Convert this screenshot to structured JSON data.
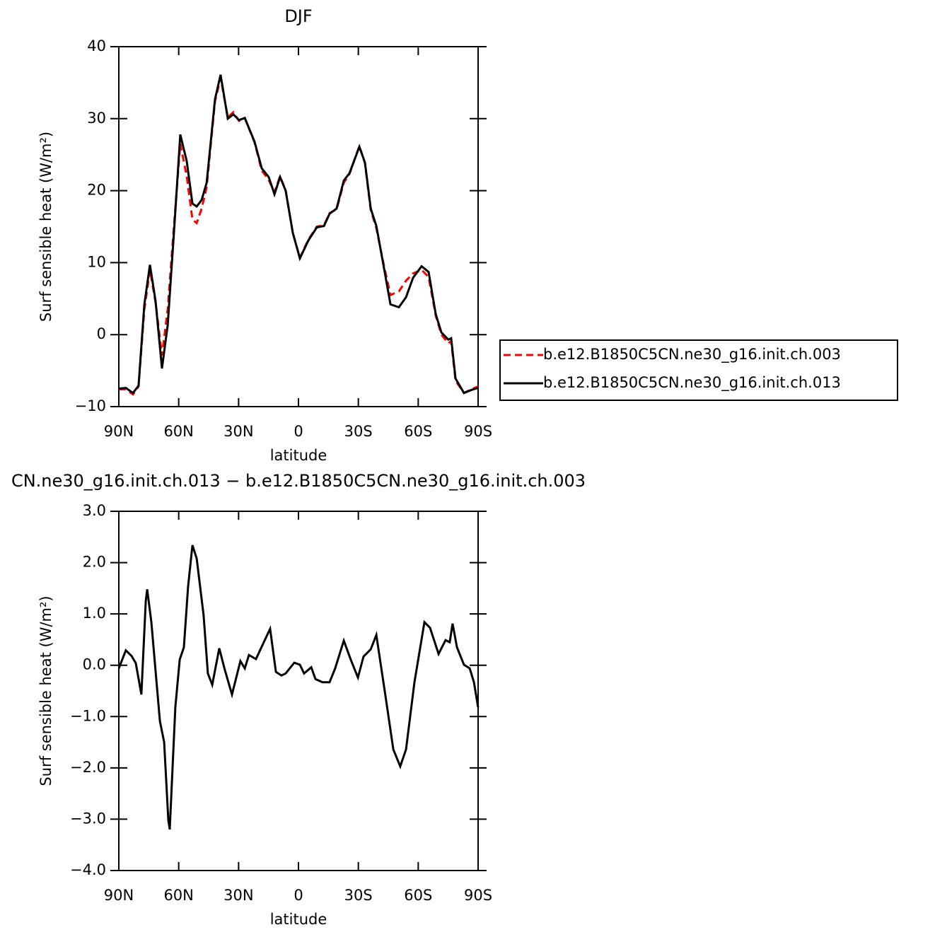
{
  "chart_data": [
    {
      "type": "line",
      "title": "DJF",
      "xlabel": "latitude",
      "ylabel": "Surf sensible heat (W/m²)",
      "x": [
        90,
        86.5,
        82.9,
        80.1,
        77.2,
        74.4,
        71.6,
        68.4,
        65.5,
        62.4,
        59.2,
        56,
        53.1,
        51,
        48.5,
        46,
        41.8,
        39,
        35.4,
        32.6,
        29.8,
        26.9,
        22,
        18.4,
        14.9,
        12,
        9.2,
        6.4,
        2.8,
        -0.7,
        -5,
        -9.2,
        -12.8,
        -15.6,
        -19.1,
        -22.7,
        -25.5,
        -30.5,
        -33.3,
        -36.2,
        -39,
        -43.2,
        -46.1,
        -50.3,
        -53.9,
        -57.4,
        -61.7,
        -65.2,
        -68.8,
        -71.6,
        -75.1,
        -76.5,
        -78.7,
        -82.9,
        -86.5,
        -90
      ],
      "series": [
        {
          "name": "b.e12.B1850C5CN.ne30_g16.init.ch.003",
          "color": "#ff0000",
          "dash": true,
          "values": [
            -7.6,
            -7.6,
            -8.3,
            -7.2,
            3.5,
            9.0,
            4.5,
            -2.9,
            3.5,
            15.0,
            26.5,
            22.0,
            16.0,
            15.5,
            17.5,
            20.5,
            32.4,
            35.7,
            30.2,
            30.9,
            29.7,
            30.1,
            26.7,
            22.8,
            21.5,
            19.8,
            22.0,
            20.0,
            14.1,
            10.7,
            13.2,
            15.0,
            15.2,
            16.9,
            17.4,
            21.1,
            22.3,
            26.2,
            23.8,
            17.3,
            14.8,
            9.1,
            5.5,
            6.0,
            7.5,
            8.5,
            9.0,
            8.0,
            2.6,
            0.0,
            -1.2,
            -0.9,
            -6.4,
            -8.1,
            -7.6,
            -7.2
          ]
        },
        {
          "name": "b.e12.B1850C5CN.ne30_g16.init.ch.013",
          "color": "#000000",
          "dash": false,
          "values": [
            -7.5,
            -7.4,
            -8.1,
            -7.1,
            4.2,
            9.7,
            4.7,
            -4.7,
            1.3,
            14.1,
            27.8,
            24.1,
            18.2,
            17.8,
            18.7,
            21.1,
            32.7,
            36.1,
            30.0,
            30.6,
            29.8,
            30.1,
            26.8,
            23.1,
            21.9,
            19.5,
            21.9,
            20.0,
            14.1,
            10.6,
            13.1,
            14.9,
            15.1,
            16.8,
            17.5,
            21.4,
            22.4,
            26.1,
            23.9,
            17.5,
            15.1,
            8.7,
            4.2,
            3.8,
            5.2,
            7.9,
            9.5,
            8.7,
            2.8,
            0.3,
            -0.7,
            -0.5,
            -6.1,
            -8.1,
            -7.7,
            -7.4
          ]
        }
      ],
      "xlim": [
        90,
        -90
      ],
      "xticks": [
        {
          "value": 90,
          "label": "90N"
        },
        {
          "value": 60,
          "label": "60N"
        },
        {
          "value": 30,
          "label": "30N"
        },
        0,
        {
          "value": -30,
          "label": "30S"
        },
        {
          "value": -60,
          "label": "60S"
        },
        {
          "value": -90,
          "label": "90S"
        }
      ],
      "ylim": [
        -10,
        40
      ],
      "yticks": [
        {
          "value": -10,
          "label": "−10"
        },
        0,
        10,
        20,
        30,
        40
      ],
      "legend": "right"
    },
    {
      "type": "line",
      "title": "CN.ne30_g16.init.ch.013 − b.e12.B1850C5CN.ne30_g16.init.ch.003",
      "xlabel": "latitude",
      "ylabel": "Surf sensible heat (W/m²)",
      "x": [
        90,
        86.5,
        83.6,
        81.5,
        78.7,
        76.5,
        75.8,
        73.7,
        69.4,
        67.3,
        65.2,
        64.5,
        61.7,
        59.5,
        57.4,
        55.3,
        53.1,
        51,
        47.5,
        45.4,
        43.2,
        39.7,
        36.8,
        33.3,
        29.1,
        26.9,
        24.8,
        21.3,
        17.7,
        14.2,
        11.3,
        8.5,
        6.4,
        2.1,
        -0.7,
        -2.8,
        -6.4,
        -8.5,
        -12,
        -15.6,
        -18.4,
        -22.7,
        -26.2,
        -29.8,
        -32.6,
        -36.2,
        -39,
        -43.9,
        -47.5,
        -51,
        -53.9,
        -58.1,
        -63.1,
        -65.9,
        -70.2,
        -73.7,
        -75.8,
        -77.2,
        -79.4,
        -82.9,
        -85.8,
        -87.9,
        -90
      ],
      "series": [
        {
          "color": "#000000",
          "dash": false,
          "values": [
            -0.06,
            0.29,
            0.18,
            0.04,
            -0.57,
            1.25,
            1.48,
            0.84,
            -1.09,
            -1.5,
            -3.02,
            -3.2,
            -0.82,
            0.11,
            0.35,
            1.53,
            2.34,
            2.08,
            0.97,
            -0.16,
            -0.38,
            0.33,
            -0.1,
            -0.57,
            0.08,
            -0.06,
            0.2,
            0.12,
            0.42,
            0.71,
            -0.13,
            -0.2,
            -0.16,
            0.05,
            0.01,
            -0.16,
            -0.04,
            -0.27,
            -0.33,
            -0.33,
            -0.06,
            0.48,
            0.11,
            -0.24,
            0.17,
            0.31,
            0.59,
            -0.68,
            -1.64,
            -1.97,
            -1.64,
            -0.33,
            0.84,
            0.73,
            0.22,
            0.49,
            0.45,
            0.81,
            0.35,
            0.01,
            -0.06,
            -0.33,
            -0.82
          ]
        }
      ],
      "xlim": [
        90,
        -90
      ],
      "xticks": [
        {
          "value": 90,
          "label": "90N"
        },
        {
          "value": 60,
          "label": "60N"
        },
        {
          "value": 30,
          "label": "30N"
        },
        0,
        {
          "value": -30,
          "label": "30S"
        },
        {
          "value": -60,
          "label": "60S"
        },
        {
          "value": -90,
          "label": "90S"
        }
      ],
      "ylim": [
        -4,
        3
      ],
      "yticks": [
        {
          "value": -4,
          "label": "−4.0"
        },
        {
          "value": -3,
          "label": "−3.0"
        },
        {
          "value": -2,
          "label": "−2.0"
        },
        {
          "value": -1,
          "label": "−1.0"
        },
        {
          "value": 0,
          "label": "0.0"
        },
        {
          "value": 1,
          "label": "1.0"
        },
        {
          "value": 2,
          "label": "2.0"
        },
        {
          "value": 3,
          "label": "3.0"
        }
      ]
    }
  ]
}
